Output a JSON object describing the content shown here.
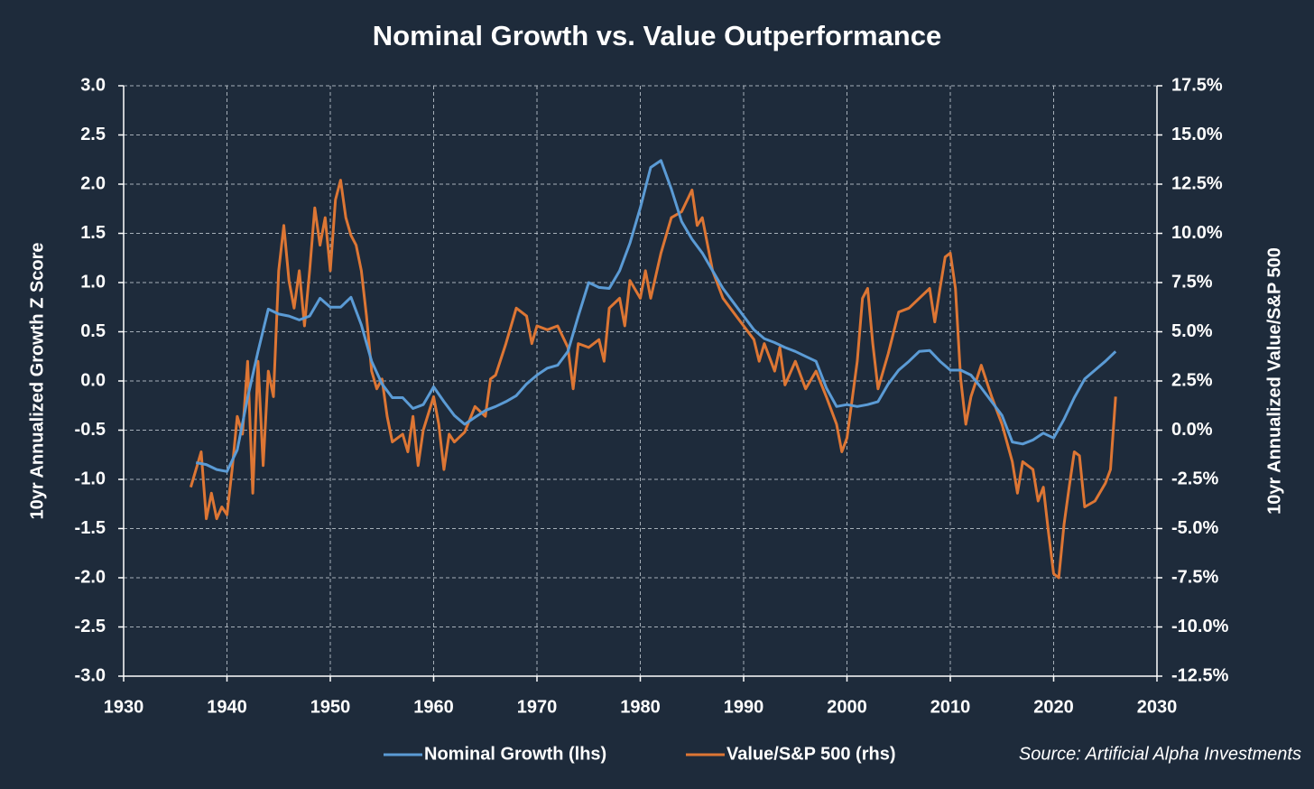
{
  "chart_data": {
    "type": "line",
    "title": "Nominal Growth vs. Value Outperformance",
    "ylabel": "10yr Annualized Growth Z Score",
    "y2label": "10yr Annualized Value/S&P 500",
    "source": "Source: Artificial Alpha Investments",
    "xlim": [
      1930,
      2030
    ],
    "xticks": [
      1930,
      1940,
      1950,
      1960,
      1970,
      1980,
      1990,
      2000,
      2010,
      2020,
      2030
    ],
    "ylim": [
      -3,
      3
    ],
    "yticks": [
      {
        "value": 3,
        "label": "3.0"
      },
      2.5,
      {
        "value": 2,
        "label": "2.0"
      },
      1.5,
      {
        "value": 1,
        "label": "1.0"
      },
      0.5,
      {
        "value": 0,
        "label": "0.0"
      },
      -0.5,
      {
        "value": -1,
        "label": "-1.0"
      },
      -1.5,
      {
        "value": -2,
        "label": "-2.0"
      },
      -2.5,
      {
        "value": -3,
        "label": "-3.0"
      }
    ],
    "y2lim": [
      -12.5,
      17.5
    ],
    "y2ticks": [
      {
        "value": 17.5,
        "label": "17.5%"
      },
      {
        "value": 15,
        "label": "15.0%"
      },
      {
        "value": 12.5,
        "label": "12.5%"
      },
      {
        "value": 10,
        "label": "10.0%"
      },
      {
        "value": 7.5,
        "label": "7.5%"
      },
      {
        "value": 5,
        "label": "5.0%"
      },
      {
        "value": 2.5,
        "label": "2.5%"
      },
      {
        "value": 0,
        "label": "0.0%"
      },
      {
        "value": -2.5,
        "label": "-2.5%"
      },
      {
        "value": -5,
        "label": "-5.0%"
      },
      {
        "value": -7.5,
        "label": "-7.5%"
      },
      {
        "value": -10,
        "label": "-10.0%"
      },
      {
        "value": -12.5,
        "label": "-12.5%"
      }
    ],
    "grid": true,
    "legend": "bottom",
    "series": [
      {
        "name": "Nominal Growth (lhs)",
        "color": "#5b9bd5",
        "axis": "y",
        "x": [
          1937,
          1938,
          1939,
          1940,
          1941,
          1942,
          1943,
          1944,
          1945,
          1946,
          1947,
          1948,
          1949,
          1950,
          1951,
          1952,
          1953,
          1954,
          1955,
          1956,
          1957,
          1958,
          1959,
          1960,
          1961,
          1962,
          1963,
          1964,
          1965,
          1966,
          1967,
          1968,
          1969,
          1970,
          1971,
          1972,
          1973,
          1974,
          1975,
          1976,
          1977,
          1978,
          1979,
          1980,
          1981,
          1982,
          1983,
          1984,
          1985,
          1986,
          1987,
          1988,
          1989,
          1990,
          1991,
          1992,
          1993,
          1994,
          1995,
          1996,
          1997,
          1998,
          1999,
          2000,
          2001,
          2002,
          2003,
          2004,
          2005,
          2006,
          2007,
          2008,
          2009,
          2010,
          2011,
          2012,
          2013,
          2014,
          2015,
          2016,
          2017,
          2018,
          2019,
          2020,
          2021,
          2022,
          2023,
          2024,
          2025,
          2026
        ],
        "values": [
          -0.83,
          -0.85,
          -0.9,
          -0.92,
          -0.7,
          -0.17,
          0.3,
          0.73,
          0.68,
          0.66,
          0.62,
          0.66,
          0.84,
          0.75,
          0.75,
          0.85,
          0.57,
          0.2,
          -0.03,
          -0.17,
          -0.17,
          -0.28,
          -0.24,
          -0.06,
          -0.21,
          -0.35,
          -0.44,
          -0.37,
          -0.3,
          -0.26,
          -0.21,
          -0.15,
          -0.03,
          0.06,
          0.13,
          0.16,
          0.3,
          0.66,
          1.0,
          0.95,
          0.94,
          1.12,
          1.4,
          1.76,
          2.17,
          2.24,
          1.95,
          1.62,
          1.44,
          1.3,
          1.12,
          0.94,
          0.8,
          0.66,
          0.52,
          0.43,
          0.39,
          0.34,
          0.3,
          0.25,
          0.2,
          -0.07,
          -0.26,
          -0.24,
          -0.26,
          -0.24,
          -0.21,
          -0.03,
          0.11,
          0.2,
          0.3,
          0.31,
          0.2,
          0.11,
          0.11,
          0.06,
          -0.07,
          -0.21,
          -0.35,
          -0.62,
          -0.64,
          -0.6,
          -0.53,
          -0.58,
          -0.39,
          -0.17,
          0.02,
          0.11,
          0.2,
          0.3
        ]
      },
      {
        "name": "Value/S&P 500 (rhs)",
        "color": "#dd7634",
        "axis": "y2",
        "x": [
          1936.5,
          1937,
          1937.5,
          1938,
          1938.5,
          1939,
          1939.5,
          1940,
          1940.5,
          1941,
          1941.5,
          1942,
          1942.5,
          1943,
          1943.5,
          1944,
          1944.5,
          1945,
          1945.5,
          1946,
          1946.5,
          1947,
          1947.5,
          1948,
          1948.5,
          1949,
          1949.5,
          1950,
          1950.5,
          1951,
          1951.5,
          1952,
          1952.5,
          1953,
          1953.5,
          1954,
          1954.5,
          1955,
          1955.5,
          1956,
          1957,
          1957.5,
          1958,
          1958.5,
          1959,
          1960,
          1960.5,
          1961,
          1961.5,
          1962,
          1963,
          1964,
          1965,
          1965.5,
          1966,
          1967,
          1968,
          1969,
          1969.5,
          1970,
          1971,
          1972,
          1973,
          1973.5,
          1974,
          1975,
          1976,
          1976.5,
          1977,
          1978,
          1978.5,
          1979,
          1980,
          1980.5,
          1981,
          1982,
          1983,
          1984,
          1985,
          1985.5,
          1986,
          1987,
          1988,
          1989,
          1990,
          1991,
          1991.5,
          1992,
          1993,
          1993.5,
          1994,
          1995,
          1996,
          1997,
          1998,
          1999,
          1999.5,
          2000,
          2001,
          2001.5,
          2002,
          2002.5,
          2003,
          2004,
          2005,
          2006,
          2007,
          2008,
          2008.5,
          2009,
          2009.5,
          2010,
          2010.5,
          2011,
          2011.5,
          2012,
          2013,
          2014,
          2015,
          2016,
          2016.5,
          2017,
          2018,
          2018.5,
          2019,
          2019.5,
          2020,
          2020.5,
          2021,
          2021.5,
          2022,
          2022.5,
          2023,
          2024,
          2025,
          2025.5,
          2026
        ],
        "values": [
          -2.9,
          -2.0,
          -1.1,
          -4.5,
          -3.2,
          -4.5,
          -3.9,
          -4.3,
          -2.0,
          0.7,
          -0.2,
          3.5,
          -3.2,
          3.5,
          -1.8,
          3.0,
          1.7,
          8.1,
          10.4,
          7.6,
          6.2,
          8.1,
          5.3,
          8.1,
          11.3,
          9.4,
          10.8,
          8.1,
          11.7,
          12.7,
          10.8,
          9.9,
          9.4,
          8.1,
          5.8,
          3.0,
          2.1,
          2.6,
          0.7,
          -0.6,
          -0.2,
          -1.1,
          0.7,
          -1.8,
          0.0,
          1.7,
          0.3,
          -2.0,
          -0.2,
          -0.6,
          -0.1,
          1.2,
          0.7,
          2.6,
          2.8,
          4.4,
          6.2,
          5.8,
          4.4,
          5.3,
          5.1,
          5.3,
          4.2,
          2.1,
          4.4,
          4.2,
          4.6,
          3.5,
          6.2,
          6.7,
          5.3,
          7.6,
          6.7,
          8.1,
          6.7,
          9.0,
          10.8,
          11.1,
          12.2,
          10.4,
          10.8,
          8.1,
          6.7,
          6.0,
          5.3,
          4.6,
          3.5,
          4.4,
          3.0,
          4.2,
          2.3,
          3.5,
          2.1,
          3.0,
          1.7,
          0.3,
          -1.1,
          -0.4,
          3.5,
          6.7,
          7.2,
          4.4,
          2.1,
          3.9,
          6.0,
          6.2,
          6.7,
          7.2,
          5.5,
          7.2,
          8.8,
          9.0,
          7.2,
          2.6,
          0.3,
          1.7,
          3.3,
          1.7,
          0.3,
          -1.6,
          -3.2,
          -1.6,
          -2.0,
          -3.6,
          -2.9,
          -5.2,
          -7.3,
          -7.5,
          -4.8,
          -2.9,
          -1.1,
          -1.3,
          -3.9,
          -3.6,
          -2.7,
          -2.0,
          1.7
        ]
      }
    ]
  }
}
